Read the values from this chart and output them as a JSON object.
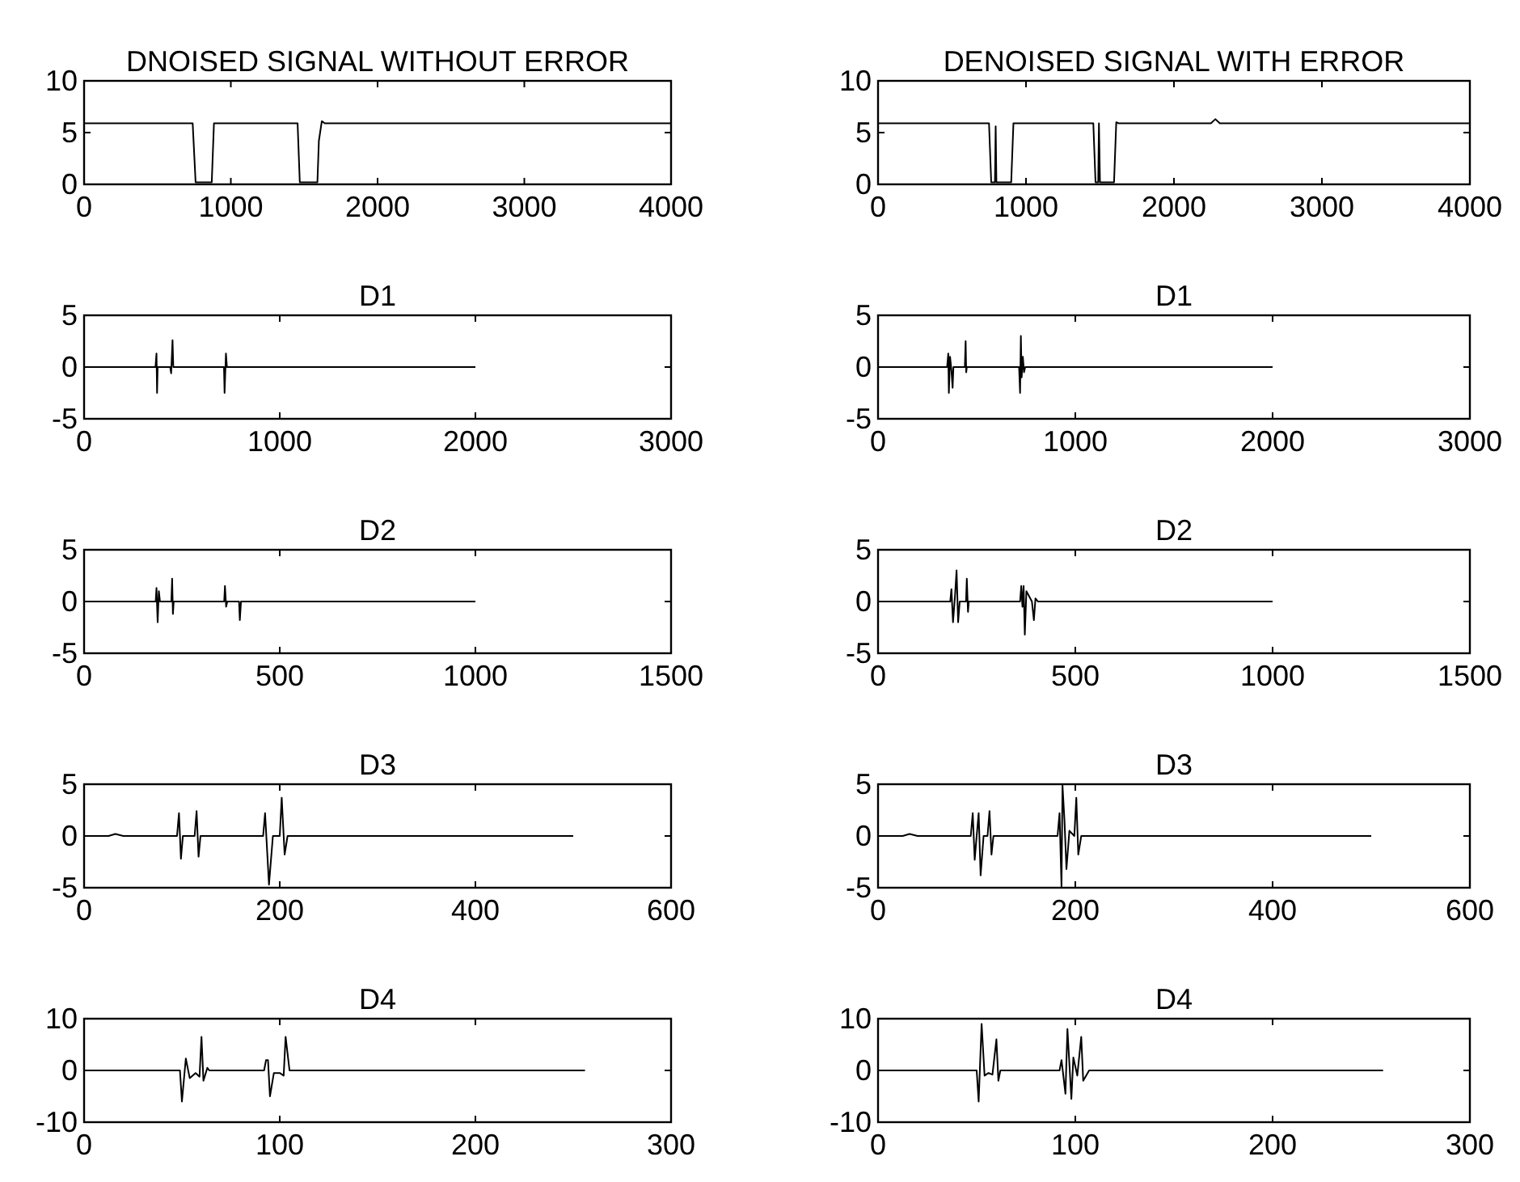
{
  "chart_data": [
    {
      "type": "line",
      "title": "DNOISED SIGNAL WITHOUT ERROR",
      "x": [
        0,
        740,
        760,
        870,
        885,
        1455,
        1470,
        1590,
        1600,
        1620,
        1640,
        4000
      ],
      "series": [
        {
          "color": "#000000",
          "values": [
            5.9,
            5.9,
            0.2,
            0.2,
            5.9,
            5.9,
            0.2,
            0.2,
            4.2,
            6.1,
            5.9,
            5.9
          ]
        }
      ],
      "xlim": [
        0,
        4000
      ],
      "ylim": [
        0,
        10
      ],
      "xticks": [
        0,
        1000,
        2000,
        3000,
        4000
      ],
      "yticks": [
        0,
        5,
        10
      ]
    },
    {
      "type": "line",
      "title": "DENOISED SIGNAL WITH ERROR",
      "x": [
        0,
        750,
        765,
        790,
        795,
        800,
        900,
        915,
        1455,
        1470,
        1488,
        1493,
        1500,
        1595,
        1610,
        1625,
        2250,
        2280,
        2310,
        4000
      ],
      "series": [
        {
          "color": "#000000",
          "values": [
            5.9,
            5.9,
            0.2,
            0.2,
            5.6,
            0.2,
            0.2,
            5.9,
            5.9,
            0.2,
            0.2,
            5.9,
            0.2,
            0.2,
            6.0,
            5.9,
            5.9,
            6.3,
            5.9,
            5.9
          ]
        }
      ],
      "xlim": [
        0,
        4000
      ],
      "ylim": [
        0,
        10
      ],
      "xticks": [
        0,
        1000,
        2000,
        3000,
        4000
      ],
      "yticks": [
        0,
        5,
        10
      ]
    },
    {
      "type": "line",
      "title": "D1",
      "x": [
        0,
        365,
        370,
        373,
        376,
        440,
        445,
        452,
        456,
        715,
        718,
        725,
        730,
        2000
      ],
      "series": [
        {
          "color": "#000000",
          "values": [
            0,
            0,
            1.3,
            -2.5,
            0,
            0,
            -0.6,
            2.6,
            0,
            0,
            -2.5,
            1.3,
            0,
            0
          ]
        }
      ],
      "xlim": [
        0,
        3000
      ],
      "ylim": [
        -5,
        5
      ],
      "xticks": [
        0,
        1000,
        2000,
        3000
      ],
      "yticks": [
        -5,
        0,
        5
      ]
    },
    {
      "type": "line",
      "title": "D1",
      "x": [
        0,
        350,
        356,
        359,
        365,
        372,
        378,
        382,
        440,
        444,
        447,
        450,
        715,
        720,
        724,
        728,
        734,
        740,
        746,
        2000
      ],
      "series": [
        {
          "color": "#000000",
          "values": [
            0,
            0,
            1.3,
            -2.5,
            1.0,
            -0.3,
            -2.0,
            0,
            0,
            2.5,
            -0.5,
            0,
            0,
            -2.5,
            3.0,
            -1.0,
            1.0,
            -0.5,
            0,
            0
          ]
        }
      ],
      "xlim": [
        0,
        3000
      ],
      "ylim": [
        -5,
        5
      ],
      "xticks": [
        0,
        1000,
        2000,
        3000
      ],
      "yticks": [
        -5,
        0,
        5
      ]
    },
    {
      "type": "line",
      "title": "D2",
      "x": [
        0,
        183,
        185,
        188,
        191,
        194,
        223,
        225,
        227,
        229,
        358,
        360,
        363,
        366,
        396,
        398,
        401,
        1000
      ],
      "series": [
        {
          "color": "#000000",
          "values": [
            0,
            0,
            1.3,
            -2.0,
            1.0,
            0,
            0,
            2.2,
            -1.2,
            0,
            0,
            1.5,
            -0.5,
            0,
            0,
            -1.8,
            0,
            0
          ]
        }
      ],
      "xlim": [
        0,
        1500
      ],
      "ylim": [
        -5,
        5
      ],
      "xticks": [
        0,
        500,
        1000,
        1500
      ],
      "yticks": [
        -5,
        0,
        5
      ]
    },
    {
      "type": "line",
      "title": "D2",
      "x": [
        0,
        183,
        186,
        190,
        195,
        199,
        203,
        207,
        223,
        225,
        228,
        230,
        360,
        363,
        366,
        369,
        372,
        376,
        390,
        395,
        399,
        405,
        1000
      ],
      "series": [
        {
          "color": "#000000",
          "values": [
            0,
            0,
            1.2,
            -2.0,
            0.5,
            3.0,
            -2.0,
            0,
            0,
            2.2,
            -1.0,
            0,
            0,
            1.5,
            -0.5,
            1.5,
            -3.2,
            1.0,
            0,
            -1.8,
            0.3,
            0,
            0
          ]
        }
      ],
      "xlim": [
        0,
        1500
      ],
      "ylim": [
        -5,
        5
      ],
      "xticks": [
        0,
        500,
        1000,
        1500
      ],
      "yticks": [
        -5,
        0,
        5
      ]
    },
    {
      "type": "line",
      "title": "D3",
      "x": [
        0,
        25,
        32,
        40,
        95,
        97,
        99,
        101,
        113,
        115,
        117,
        119,
        183,
        185,
        189,
        193,
        200,
        202,
        205,
        208,
        500
      ],
      "series": [
        {
          "color": "#000000",
          "values": [
            0,
            0,
            0.2,
            0,
            0,
            2.2,
            -2.2,
            0,
            0,
            2.4,
            -2.0,
            0,
            0,
            2.2,
            -4.7,
            0,
            0,
            3.7,
            -1.8,
            0,
            0
          ]
        }
      ],
      "xlim": [
        0,
        600
      ],
      "ylim": [
        -5,
        5
      ],
      "xticks": [
        0,
        200,
        400,
        600
      ],
      "yticks": [
        -5,
        0,
        5
      ]
    },
    {
      "type": "line",
      "title": "D3",
      "x": [
        0,
        25,
        32,
        40,
        94,
        96,
        98,
        100,
        102,
        104,
        107,
        111,
        113,
        115,
        117,
        182,
        184,
        186,
        187,
        189,
        191,
        194,
        199,
        201,
        203,
        206,
        500
      ],
      "series": [
        {
          "color": "#000000",
          "values": [
            0,
            0,
            0.2,
            0,
            0,
            2.2,
            -2.3,
            0,
            2.2,
            -3.8,
            0,
            0,
            2.4,
            -1.8,
            0,
            0,
            2.2,
            -4.9,
            4.9,
            1.5,
            -3.2,
            0.5,
            0,
            3.7,
            -1.8,
            0,
            0
          ]
        }
      ],
      "xlim": [
        0,
        600
      ],
      "ylim": [
        -5,
        5
      ],
      "xticks": [
        0,
        200,
        400,
        600
      ],
      "yticks": [
        -5,
        0,
        5
      ]
    },
    {
      "type": "line",
      "title": "D4",
      "x": [
        0,
        49,
        50,
        52,
        54,
        57,
        59,
        60,
        61,
        63,
        64,
        92,
        93,
        94,
        95,
        97,
        100,
        102,
        103,
        105,
        256
      ],
      "series": [
        {
          "color": "#000000",
          "values": [
            0,
            0,
            -6,
            2.3,
            -1.5,
            -0.5,
            -1.2,
            6.5,
            -2,
            0.5,
            0,
            0,
            2,
            2,
            -5,
            -0.5,
            -0.5,
            -1,
            6.5,
            0,
            0
          ]
        }
      ],
      "xlim": [
        0,
        300
      ],
      "ylim": [
        -10,
        10
      ],
      "xticks": [
        0,
        100,
        200,
        300
      ],
      "yticks": [
        -10,
        0,
        10
      ]
    },
    {
      "type": "line",
      "title": "D4",
      "x": [
        0,
        50,
        51,
        52.5,
        54,
        56,
        58,
        60,
        61,
        62,
        92,
        93,
        95,
        96,
        98,
        99,
        101,
        103,
        104,
        107,
        256
      ],
      "series": [
        {
          "color": "#000000",
          "values": [
            0,
            0,
            -6,
            9,
            -1,
            -0.5,
            -0.8,
            6,
            -2,
            0,
            0,
            2,
            -4.5,
            8,
            -5.5,
            2.5,
            -1,
            6.5,
            -2,
            0,
            0
          ]
        }
      ],
      "xlim": [
        0,
        300
      ],
      "ylim": [
        -10,
        10
      ],
      "xticks": [
        0,
        100,
        200,
        300
      ],
      "yticks": [
        -10,
        0,
        10
      ]
    }
  ]
}
